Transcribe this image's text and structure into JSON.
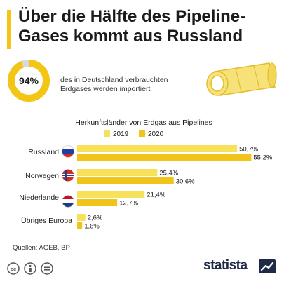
{
  "header": {
    "title_line1": "Über die Hälfte des Pipeline-",
    "title_line2": "Gases kommt aus Russland"
  },
  "highlight": {
    "percent_label": "94%",
    "percent_value": 94,
    "text_line1": "des in Deutschland verbrauchten",
    "text_line2": "Erdgases werden importiert"
  },
  "chart_data": {
    "type": "bar",
    "orientation": "horizontal",
    "title": "Herkunftsländer von Erdgas aus Pipelines",
    "categories": [
      "Russland",
      "Norwegen",
      "Niederlande",
      "Übriges Europa"
    ],
    "series": [
      {
        "name": "2019",
        "values": [
          50.7,
          25.4,
          21.4,
          2.6
        ],
        "labels": [
          "50,7%",
          "25,4%",
          "21,4%",
          "2,6%"
        ],
        "color": "#f7e15b"
      },
      {
        "name": "2020",
        "values": [
          55.2,
          30.6,
          12.7,
          1.6
        ],
        "labels": [
          "55,2%",
          "30,6%",
          "12,7%",
          "1,6%"
        ],
        "color": "#f0c419"
      }
    ],
    "xlim": [
      0,
      60
    ],
    "legend_position": "top",
    "grid": false
  },
  "footer": {
    "source": "Quellen: AGEB, BP",
    "brand": "statista"
  },
  "colors": {
    "accent": "#f3c515",
    "donut_track": "#d9d9d9",
    "brand": "#1f2a44",
    "pipe_fill": "#f7e27a",
    "pipe_stroke": "#e2bf2a"
  }
}
